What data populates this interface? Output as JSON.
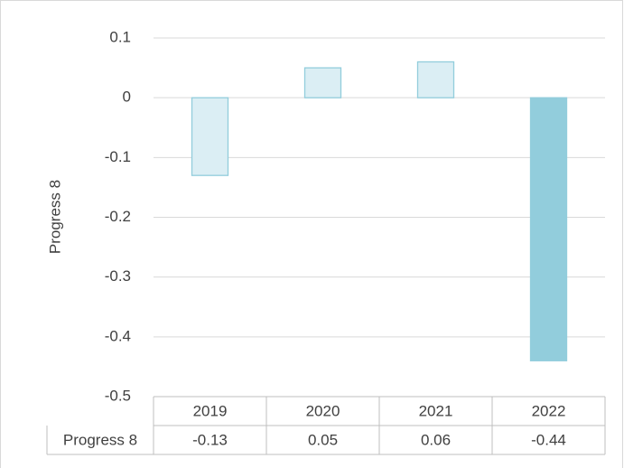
{
  "chart_data": {
    "type": "bar",
    "y_label": "Progress 8",
    "categories": [
      "2019",
      "2020",
      "2021",
      "2022"
    ],
    "series": [
      {
        "name": "Progress 8",
        "values": [
          -0.13,
          0.05,
          0.06,
          -0.44
        ]
      }
    ],
    "colors": [
      "#dbeef4",
      "#dbeef4",
      "#dbeef4",
      "#92cddc"
    ],
    "edgecolors": [
      "#92cddc",
      "#92cddc",
      "#92cddc",
      "#92cddc"
    ],
    "ylim": [
      -0.5,
      0.1
    ],
    "yticks": [
      0.1,
      0,
      -0.1,
      -0.2,
      -0.3,
      -0.4,
      -0.5
    ],
    "grid": true,
    "data_table": true
  }
}
